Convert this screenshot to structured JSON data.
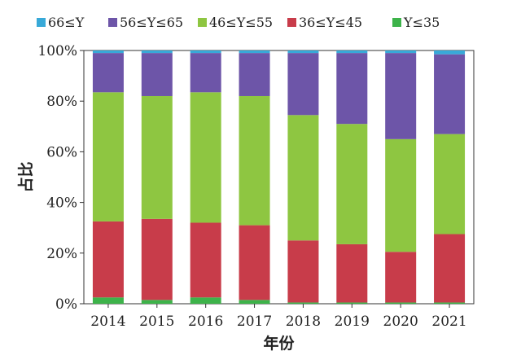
{
  "chart_data": {
    "type": "bar",
    "stacked": true,
    "categories": [
      "2014",
      "2015",
      "2016",
      "2017",
      "2018",
      "2019",
      "2020",
      "2021"
    ],
    "xlabel": "年份",
    "ylabel": "占比",
    "ylim": [
      0,
      100
    ],
    "yticks": [
      "0%",
      "20%",
      "40%",
      "60%",
      "80%",
      "100%"
    ],
    "ytick_values": [
      0,
      20,
      40,
      60,
      80,
      100
    ],
    "grid": false,
    "legend_position": "top",
    "legend_order": [
      4,
      3,
      2,
      1,
      0
    ],
    "series": [
      {
        "name": "Y≤35",
        "color": "#3db34a",
        "values": [
          2.5,
          1.5,
          2.5,
          1.5,
          0.5,
          0.5,
          0.5,
          0.5
        ]
      },
      {
        "name": "36≤Y≤45",
        "color": "#c83c4a",
        "values": [
          30,
          32,
          29.5,
          29.5,
          24.5,
          23,
          20,
          27
        ]
      },
      {
        "name": "46≤Y≤55",
        "color": "#8ec641",
        "values": [
          51,
          48.5,
          51.5,
          51,
          49.5,
          47.5,
          44.5,
          39.5
        ]
      },
      {
        "name": "56≤Y≤65",
        "color": "#6d55a8",
        "values": [
          15.5,
          17,
          15.5,
          17,
          24.5,
          28,
          34,
          31.5
        ]
      },
      {
        "name": "66≤Y",
        "color": "#38a9d8",
        "values": [
          1,
          1,
          1,
          1,
          1,
          1,
          1,
          1.5
        ]
      }
    ]
  }
}
